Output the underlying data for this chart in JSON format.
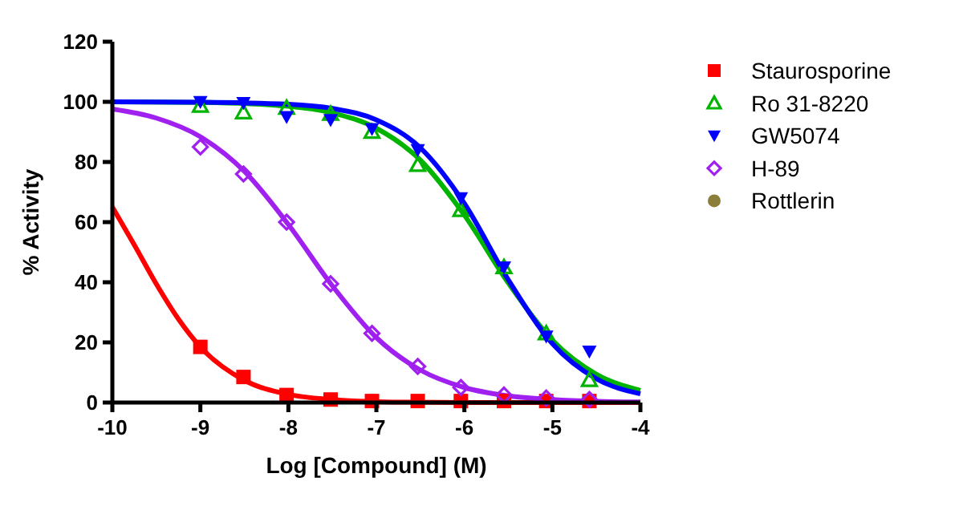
{
  "chart_data": {
    "type": "scatter",
    "xlabel": "Log [Compound] (M)",
    "ylabel": "% Activity",
    "xlim": [
      -10,
      -4
    ],
    "xticks": [
      -10,
      -9,
      -8,
      -7,
      -6,
      -5,
      -4
    ],
    "ylim": [
      0,
      120
    ],
    "yticks": [
      0,
      20,
      40,
      60,
      80,
      100,
      120
    ],
    "grid": false,
    "legend": "right",
    "x": [
      -9,
      -8.51,
      -8.02,
      -7.52,
      -7.05,
      -6.53,
      -6.04,
      -5.55,
      -5.07,
      -4.58
    ],
    "series": [
      {
        "type": "line",
        "color": "#ff0000",
        "x": [
          -10,
          -9.75,
          -9.5,
          -9.25,
          -9,
          -8.5,
          -8,
          -7.5,
          -7,
          -6,
          -5,
          -4
        ],
        "values": [
          65,
          52.4,
          39.4,
          27.8,
          18.5,
          7.4,
          2.7,
          1,
          0.3,
          0,
          0,
          0
        ]
      },
      {
        "type": "line",
        "color": "#00b400",
        "x": [
          -10,
          -9,
          -8,
          -7.5,
          -7,
          -6.5,
          -6,
          -5.5,
          -5,
          -4.5,
          -4
        ],
        "values": [
          100,
          99.8,
          98.5,
          96.3,
          91.2,
          80.6,
          62.3,
          39.7,
          20.7,
          9.4,
          4
        ]
      },
      {
        "type": "line",
        "color": "#0000ff",
        "x": [
          -10,
          -9,
          -8,
          -7.5,
          -7,
          -6.5,
          -6,
          -5.5,
          -5,
          -4.5,
          -4
        ],
        "values": [
          100,
          99.9,
          99.2,
          97.8,
          94,
          84.7,
          66.2,
          40.8,
          19.6,
          7.9,
          2.9
        ]
      },
      {
        "type": "line",
        "color": "#a020f0",
        "x": [
          -10,
          -9.5,
          -9,
          -8.5,
          -8,
          -7.5,
          -7,
          -6.5,
          -6,
          -5.5,
          -5,
          -4.5,
          -4
        ],
        "values": [
          97.6,
          94.6,
          88.4,
          76.9,
          59.2,
          38.8,
          21.6,
          10.8,
          5,
          2.2,
          1,
          0.4,
          0.2
        ]
      },
      {
        "name": "Staurosporine",
        "color": "#ff0000",
        "marker": "square",
        "values": [
          18.5,
          8.5,
          2.5,
          1,
          0.5,
          0.5,
          0.5,
          0.5,
          0.5,
          0.5
        ]
      },
      {
        "name": "Ro 31-8220",
        "color": "#00b400",
        "marker": "triangle-open",
        "values": [
          98.7,
          96.5,
          98,
          96,
          90,
          79,
          64,
          45,
          23,
          7.5
        ]
      },
      {
        "name": "GW5074",
        "color": "#0000ff",
        "marker": "triangle-down",
        "values": [
          100,
          99.7,
          95,
          94,
          91,
          84,
          68,
          45,
          22,
          17
        ]
      },
      {
        "name": "H-89",
        "color": "#a020f0",
        "marker": "diamond-open",
        "values": [
          85,
          76,
          60,
          39.5,
          23,
          12,
          5,
          2.5,
          1.5,
          1
        ]
      },
      {
        "name": "Rottlerin",
        "color": "#8b7d3a",
        "marker": "circle",
        "values": [
          null,
          null,
          null,
          null,
          null,
          null,
          null,
          null,
          null,
          null
        ]
      }
    ]
  }
}
